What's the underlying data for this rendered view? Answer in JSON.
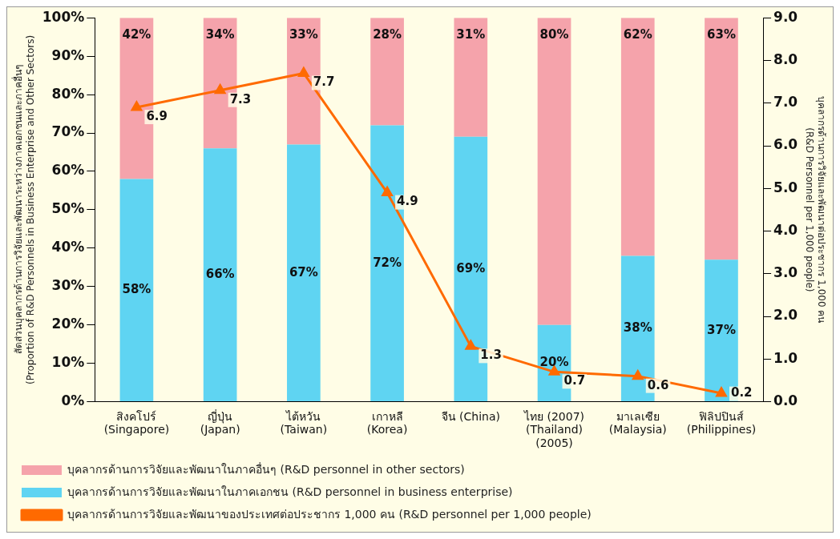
{
  "chart_data": {
    "type": "bar",
    "stacked": true,
    "categories": [
      "สิงคโปร์\n(Singapore)",
      "ญี่ปุ่น\n(Japan)",
      "ไต้หวัน\n(Taiwan)",
      "เกาหลี\n(Korea)",
      "จีน (China)",
      "ไทย (2007)\n(Thailand)\n(2005)",
      "มาเลเซีย\n(Malaysia)",
      "ฟิลิปปินส์\n(Philippines)"
    ],
    "ylabel": "สัดส่วนบุคลากรด้านการวิจัยและพัฒนาระหว่างภาคเอกชนและภาคอื่นๆ\n(Proportion of R&D Personnels in Business Enterprise and Other Sectors)",
    "y2label": "บุคลากรด้านการวิจัยและพัฒนาต่อประชากร 1,000 คน\n(R&D Personnel per 1,000 people)",
    "ylim": [
      0,
      100
    ],
    "yticks": [
      {
        "value": 0,
        "label": "0%"
      },
      {
        "value": 10,
        "label": "10%"
      },
      {
        "value": 20,
        "label": "20%"
      },
      {
        "value": 30,
        "label": "30%"
      },
      {
        "value": 40,
        "label": "40%"
      },
      {
        "value": 50,
        "label": "50%"
      },
      {
        "value": 60,
        "label": "60%"
      },
      {
        "value": 70,
        "label": "70%"
      },
      {
        "value": 80,
        "label": "80%"
      },
      {
        "value": 90,
        "label": "90%"
      },
      {
        "value": 100,
        "label": "100%"
      }
    ],
    "y2lim": [
      0,
      9
    ],
    "y2ticks": [
      {
        "value": 0,
        "label": "0.0"
      },
      {
        "value": 1,
        "label": "1.0"
      },
      {
        "value": 2,
        "label": "2.0"
      },
      {
        "value": 3,
        "label": "3.0"
      },
      {
        "value": 4,
        "label": "4.0"
      },
      {
        "value": 5,
        "label": "5.0"
      },
      {
        "value": 6,
        "label": "6.0"
      },
      {
        "value": 7,
        "label": "7.0"
      },
      {
        "value": 8,
        "label": "8.0"
      },
      {
        "value": 9,
        "label": "9.0"
      }
    ],
    "legend": "bottom",
    "series": [
      {
        "name": "บุคลากรด้านการวิจัยและพัฒนาในภาคเอกชน (R&D personnel in business enterprise)",
        "color": "#5fd4f2",
        "values": [
          58,
          66,
          67,
          72,
          69,
          20,
          38,
          37
        ],
        "value_labels": [
          "58%",
          "66%",
          "67%",
          "72%",
          "69%",
          "20%",
          "38%",
          "37%"
        ]
      },
      {
        "name": "บุคลากรด้านการวิจัยและพัฒนาในภาคอื่นๆ (R&D personnel in other sectors)",
        "color": "#f5a3ab",
        "values": [
          42,
          34,
          33,
          28,
          31,
          80,
          62,
          63
        ],
        "value_labels": [
          "42%",
          "34%",
          "33%",
          "28%",
          "31%",
          "80%",
          "62%",
          "63%"
        ]
      },
      {
        "name": "บุคลากรด้านการวิจัยและพัฒนาของประเทศต่อประชากร 1,000 คน (R&D personnel per 1,000 people)",
        "type": "line",
        "axis": "y2",
        "marker": "triangle",
        "color": "#ff6a00",
        "values": [
          6.9,
          7.3,
          7.7,
          4.9,
          1.3,
          0.7,
          0.6,
          0.2
        ],
        "value_labels": [
          "6.9",
          "7.3",
          "7.7",
          "4.9",
          "1.3",
          "0.7",
          "0.6",
          "0.2"
        ]
      }
    ]
  }
}
